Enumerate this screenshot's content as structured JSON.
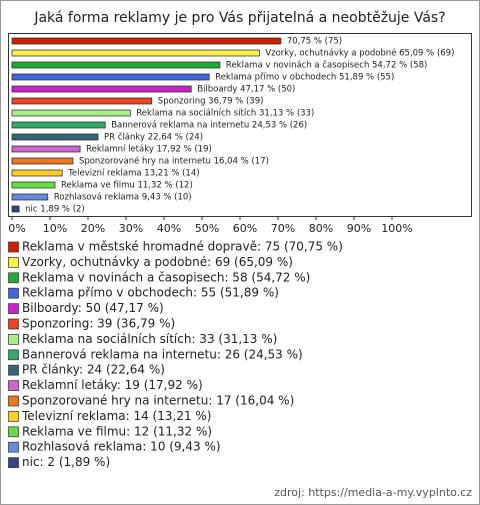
{
  "chart_data": {
    "type": "bar",
    "orientation": "horizontal",
    "title": "Jaká forma reklamy je pro Vás přijatelná a neobtěžuje Vás?",
    "values": [
      70.75,
      65.09,
      54.72,
      51.89,
      47.17,
      36.79,
      31.13,
      24.53,
      22.64,
      17.92,
      16.04,
      13.21,
      11.32,
      9.43,
      1.89
    ],
    "value_labels": [
      "70,75 % (75)",
      "Vzorky, ochutnávky a podobné 65,09 % (69)",
      "Reklama v novinách a časopisech 54,72 % (58)",
      "Reklama přímo v obchodech 51,89 % (55)",
      "Bilboardy 47,17 % (50)",
      "Sponzoring 36,79 % (39)",
      "Reklama na sociálních sítích 31,13 % (33)",
      "Bannerová reklama na internetu 24,53 % (26)",
      "PR články 22,64 % (24)",
      "Reklamní letáky 17,92 % (19)",
      "Sponzorované hry na internetu 16,04 % (17)",
      "Televizní reklama 13,21 % (14)",
      "Reklama ve filmu 11,32 % (12)",
      "Rozhlasová reklama 9,43 % (10)",
      "nic 1,89 % (2)"
    ],
    "legend": [
      "Reklama v městské hromadné dopravě: 75 (70,75 %)",
      "Vzorky, ochutnávky a podobné: 69 (65,09 %)",
      "Reklama v novinách a časopisech: 58 (54,72 %)",
      "Reklama přímo v obchodech: 55 (51,89 %)",
      "Bilboardy: 50 (47,17 %)",
      "Sponzoring: 39 (36,79 %)",
      "Reklama na sociálních sítích: 33 (31,13 %)",
      "Bannerová reklama na internetu: 26 (24,53 %)",
      "PR články: 24 (22,64 %)",
      "Reklamní letáky: 19 (17,92 %)",
      "Sponzorované hry na internetu: 17 (16,04 %)",
      "Televizní reklama: 14 (13,21 %)",
      "Reklama ve filmu: 12 (11,32 %)",
      "Rozhlasová reklama: 10 (9,43 %)",
      "nic: 2 (1,89 %)"
    ],
    "colors": [
      "#cc2200",
      "#ffee44",
      "#22aa33",
      "#4466dd",
      "#cc22cc",
      "#ee4422",
      "#aaee88",
      "#33aa66",
      "#336677",
      "#cc66cc",
      "#ee7722",
      "#ffcc22",
      "#66dd44",
      "#6688dd",
      "#334488"
    ],
    "xlim": [
      0,
      100
    ],
    "xticks": [
      {
        "value": 0,
        "label": "0%"
      },
      {
        "value": 10,
        "label": "10%"
      },
      {
        "value": 20,
        "label": "20%"
      },
      {
        "value": 30,
        "label": "30%"
      },
      {
        "value": 40,
        "label": "40%"
      },
      {
        "value": 50,
        "label": "50%"
      },
      {
        "value": 60,
        "label": "60%"
      },
      {
        "value": 70,
        "label": "70%"
      },
      {
        "value": 80,
        "label": "80%"
      },
      {
        "value": 90,
        "label": "90%"
      },
      {
        "value": 100,
        "label": "100%"
      }
    ],
    "source": "zdroj: https://media-a-my.vyplnto.cz"
  }
}
